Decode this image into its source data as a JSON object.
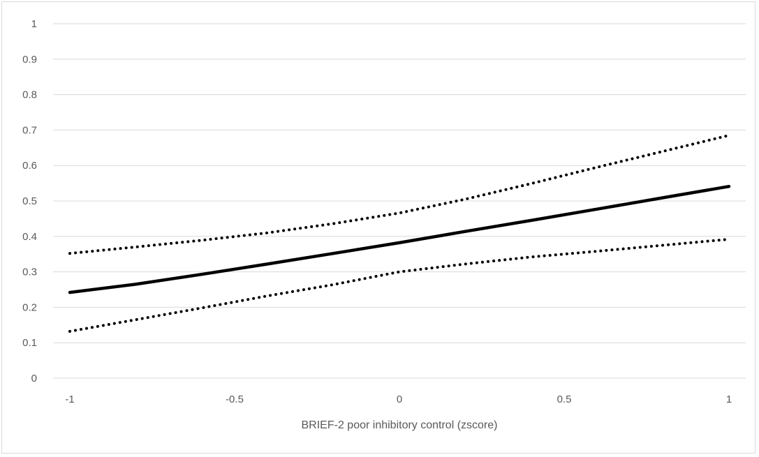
{
  "chart_data": {
    "type": "line",
    "xlabel": "BRIEF-2 poor inhibitory control (zscore)",
    "ylabel": "",
    "xlim": [
      -1,
      1
    ],
    "ylim": [
      0,
      1
    ],
    "x_ticks": [
      -1,
      -0.5,
      0,
      0.5,
      1
    ],
    "y_ticks": [
      0,
      0.1,
      0.2,
      0.3,
      0.4,
      0.5,
      0.6,
      0.7,
      0.8,
      0.9,
      1
    ],
    "x_tick_labels": [
      "-1",
      "-0.5",
      "0",
      "0.5",
      "1"
    ],
    "y_tick_labels": [
      "0",
      "0.1",
      "0.2",
      "0.3",
      "0.4",
      "0.5",
      "0.6",
      "0.7",
      "0.8",
      "0.9",
      "1"
    ],
    "grid": "horizontal",
    "legend": "none",
    "series": [
      {
        "style": "solid",
        "color": "#000000",
        "x": [
          -1,
          -0.8,
          -0.6,
          -0.4,
          -0.2,
          0,
          0.2,
          0.4,
          0.6,
          0.8,
          1
        ],
        "values": [
          0.242,
          0.265,
          0.293,
          0.322,
          0.352,
          0.382,
          0.414,
          0.445,
          0.477,
          0.509,
          0.541
        ]
      },
      {
        "style": "dotted",
        "color": "#000000",
        "x": [
          -1,
          -0.8,
          -0.6,
          -0.4,
          -0.2,
          0,
          0.2,
          0.4,
          0.6,
          0.8,
          1
        ],
        "values": [
          0.352,
          0.37,
          0.389,
          0.41,
          0.436,
          0.466,
          0.505,
          0.549,
          0.595,
          0.64,
          0.685
        ]
      },
      {
        "style": "dotted",
        "color": "#000000",
        "x": [
          -1,
          -0.8,
          -0.6,
          -0.4,
          -0.2,
          0,
          0.2,
          0.4,
          0.6,
          0.8,
          1
        ],
        "values": [
          0.132,
          0.165,
          0.198,
          0.232,
          0.264,
          0.3,
          0.322,
          0.342,
          0.358,
          0.375,
          0.392
        ]
      }
    ]
  }
}
